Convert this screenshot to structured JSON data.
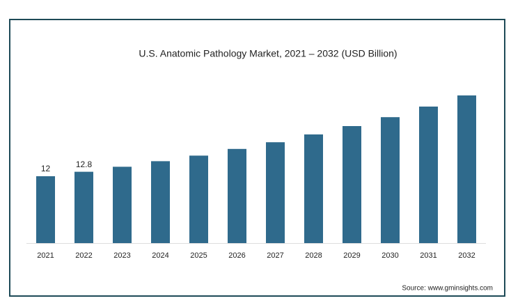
{
  "chart_data": {
    "type": "bar",
    "title": "U.S. Anatomic Pathology Market, 2021 – 2032 (USD Billion)",
    "categories": [
      "2021",
      "2022",
      "2023",
      "2024",
      "2025",
      "2026",
      "2027",
      "2028",
      "2029",
      "2030",
      "2031",
      "2032"
    ],
    "values": [
      12,
      12.8,
      13.7,
      14.7,
      15.7,
      16.9,
      18.1,
      19.5,
      21,
      22.6,
      24.5,
      26.5
    ],
    "value_labels": [
      "12",
      "12.8",
      null,
      null,
      null,
      null,
      null,
      null,
      null,
      null,
      null,
      null
    ],
    "color": "#2f6a8c",
    "source": "Source: www.gminsights.com"
  }
}
